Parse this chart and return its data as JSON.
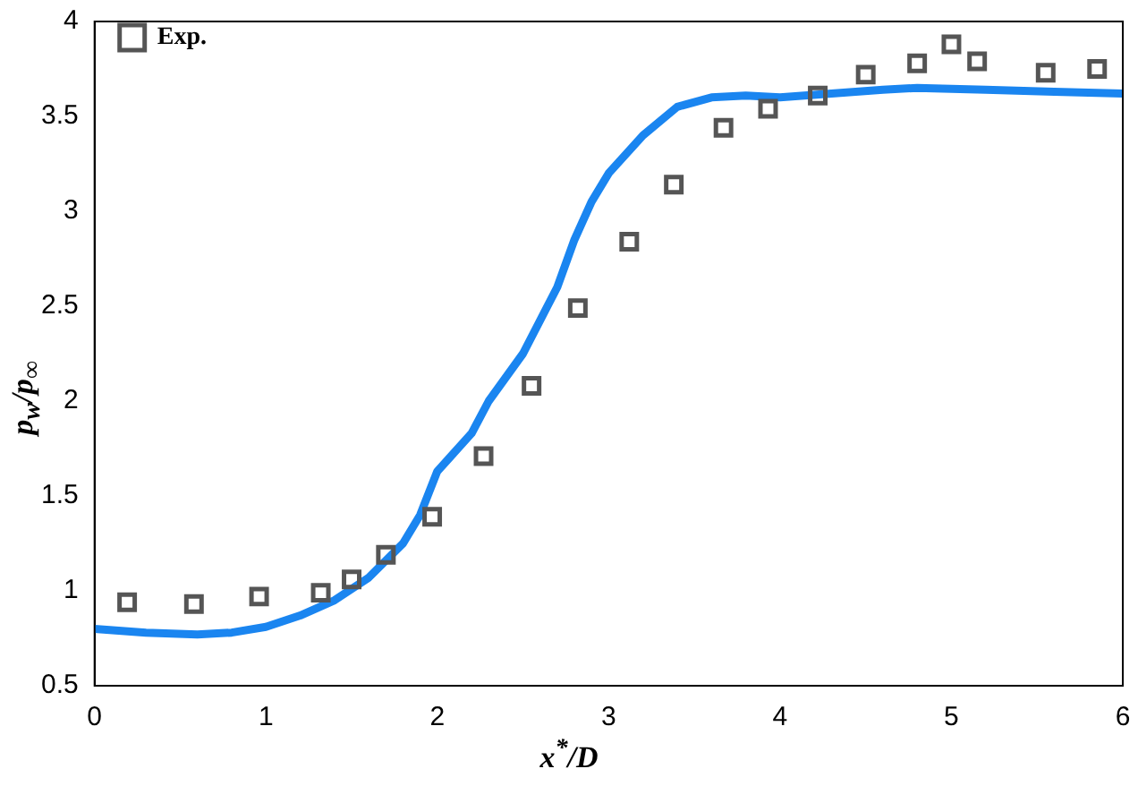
{
  "chart_data": {
    "type": "scatter",
    "xlabel": "x$^{*}$/D",
    "ylabel": "p$_{w}$/p$_{∞}$",
    "xlim": [
      0,
      6
    ],
    "xticks": [
      0,
      1,
      2,
      3,
      4,
      5,
      6
    ],
    "ylim": [
      0.5,
      4
    ],
    "yticks": [
      0.5,
      1,
      1.5,
      2,
      2.5,
      3,
      3.5,
      4
    ],
    "grid": false,
    "legend": "top left",
    "series": [
      {
        "name": "Exp.",
        "marker": "square",
        "color": "#555555",
        "x": [
          0.19,
          0.58,
          0.96,
          1.32,
          1.5,
          1.7,
          1.97,
          2.27,
          2.55,
          2.82,
          3.12,
          3.38,
          3.67,
          3.93,
          4.22,
          4.5,
          4.8,
          5.0,
          5.15,
          5.55,
          5.85
        ],
        "values": [
          0.94,
          0.93,
          0.97,
          0.99,
          1.06,
          1.19,
          1.39,
          1.71,
          2.08,
          2.49,
          2.84,
          3.14,
          3.44,
          3.54,
          3.61,
          3.72,
          3.78,
          3.88,
          3.79,
          3.73,
          3.75
        ]
      },
      {
        "type": "line",
        "marker": "none",
        "line_style": "solid",
        "color": "#1a85f0",
        "x": [
          0,
          0.3,
          0.6,
          0.8,
          1.0,
          1.2,
          1.4,
          1.6,
          1.8,
          1.9,
          2.0,
          2.2,
          2.3,
          2.5,
          2.7,
          2.8,
          2.9,
          3.0,
          3.2,
          3.4,
          3.6,
          3.8,
          4.0,
          4.3,
          4.6,
          4.8,
          5.2,
          5.6,
          6
        ],
        "values": [
          0.8,
          0.78,
          0.77,
          0.78,
          0.81,
          0.87,
          0.95,
          1.07,
          1.25,
          1.4,
          1.63,
          1.83,
          2.0,
          2.25,
          2.6,
          2.85,
          3.05,
          3.2,
          3.4,
          3.55,
          3.6,
          3.61,
          3.6,
          3.62,
          3.64,
          3.65,
          3.64,
          3.63,
          3.62
        ]
      }
    ]
  }
}
